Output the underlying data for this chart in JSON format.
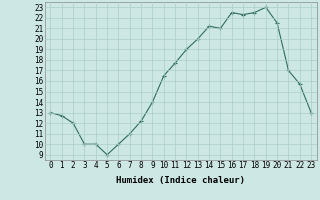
{
  "x": [
    0,
    1,
    2,
    3,
    4,
    5,
    6,
    7,
    8,
    9,
    10,
    11,
    12,
    13,
    14,
    15,
    16,
    17,
    18,
    19,
    20,
    21,
    22,
    23
  ],
  "y": [
    13.0,
    12.7,
    12.0,
    10.0,
    10.0,
    9.0,
    10.0,
    11.0,
    12.2,
    14.0,
    16.5,
    17.7,
    19.0,
    20.0,
    21.2,
    21.0,
    22.5,
    22.3,
    22.5,
    23.0,
    21.5,
    17.0,
    15.7,
    13.0
  ],
  "line_color": "#2e6b5e",
  "marker_color": "#2e6b5e",
  "bg_color": "#cde8e4",
  "grid_color": "#aacec9",
  "xlabel": "Humidex (Indice chaleur)",
  "xlim": [
    -0.5,
    23.5
  ],
  "ylim": [
    8.5,
    23.5
  ],
  "yticks": [
    9,
    10,
    11,
    12,
    13,
    14,
    15,
    16,
    17,
    18,
    19,
    20,
    21,
    22,
    23
  ],
  "xticks": [
    0,
    1,
    2,
    3,
    4,
    5,
    6,
    7,
    8,
    9,
    10,
    11,
    12,
    13,
    14,
    15,
    16,
    17,
    18,
    19,
    20,
    21,
    22,
    23
  ],
  "label_fontsize": 6.5,
  "tick_fontsize": 5.5
}
